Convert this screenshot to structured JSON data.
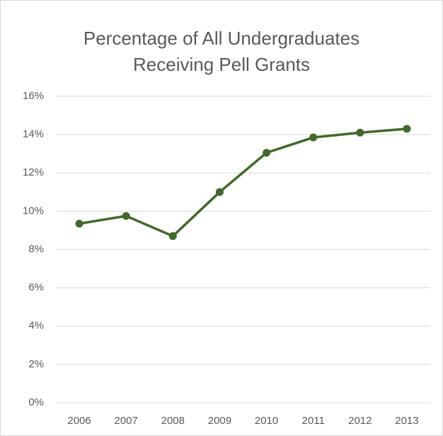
{
  "chart_data": {
    "type": "line",
    "title": "Percentage of All Undergraduates Receiving Pell Grants",
    "categories": [
      "2006",
      "2007",
      "2008",
      "2009",
      "2010",
      "2011",
      "2012",
      "2013"
    ],
    "values": [
      9.35,
      9.75,
      8.7,
      11.0,
      13.05,
      13.85,
      14.1,
      14.3
    ],
    "color": "#41692b",
    "ylim": [
      0,
      16
    ],
    "yticks": [
      {
        "value": 0,
        "label": "0%"
      },
      {
        "value": 2,
        "label": "2%"
      },
      {
        "value": 4,
        "label": "4%"
      },
      {
        "value": 6,
        "label": "6%"
      },
      {
        "value": 8,
        "label": "8%"
      },
      {
        "value": 10,
        "label": "10%"
      },
      {
        "value": 12,
        "label": "12%"
      },
      {
        "value": 14,
        "label": "14%"
      },
      {
        "value": 16,
        "label": "16%"
      }
    ],
    "grid": true
  }
}
